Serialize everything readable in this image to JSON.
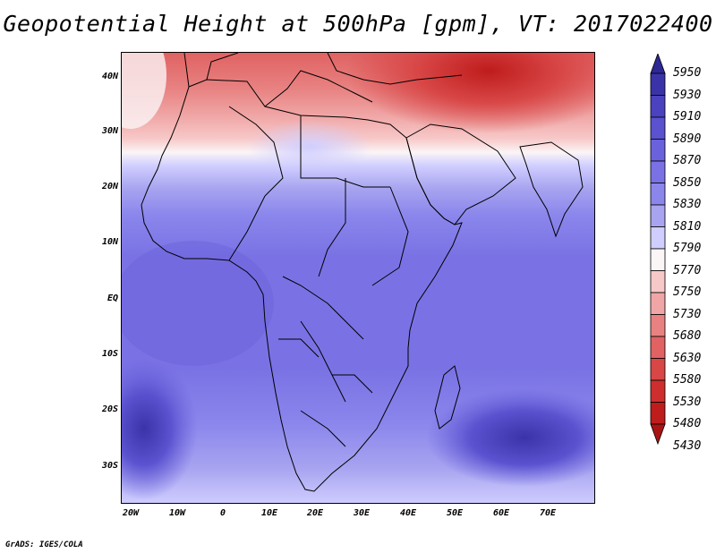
{
  "title": "Geopotential Height at 500hPa [gpm], VT: 2017022400",
  "credit": "GrADS: IGES/COLA",
  "map": {
    "lat_labels": [
      "40N",
      "30N",
      "20N",
      "10N",
      "EQ",
      "10S",
      "20S",
      "30S"
    ],
    "lon_labels": [
      "20W",
      "10W",
      "0",
      "10E",
      "20E",
      "30E",
      "40E",
      "50E",
      "60E",
      "70E"
    ]
  },
  "colorbar": {
    "labels": [
      "5950",
      "5930",
      "5910",
      "5890",
      "5870",
      "5850",
      "5830",
      "5810",
      "5790",
      "5770",
      "5750",
      "5730",
      "5680",
      "5630",
      "5580",
      "5530",
      "5480",
      "5430"
    ],
    "colors": [
      "#2e2894",
      "#3a33a8",
      "#4a42bf",
      "#5a52cf",
      "#6a62dc",
      "#7a72e4",
      "#8a86ec",
      "#a8a4f0",
      "#d0ceff",
      "#fbf5f6",
      "#f7c8c8",
      "#f0a6a6",
      "#e88282",
      "#e06262",
      "#d84646",
      "#cf2e2e",
      "#bf1c1c",
      "#a81414"
    ]
  }
}
